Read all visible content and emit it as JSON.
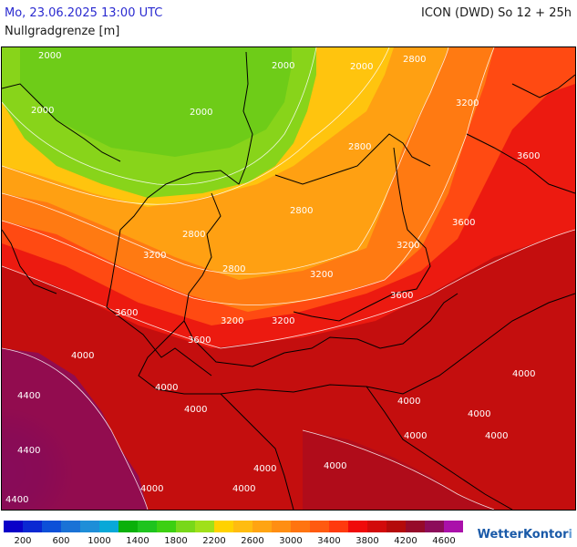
{
  "header": {
    "date": "Mo, 23.06.2025 13:00 UTC",
    "model": "ICON (DWD) So 12 + 25h",
    "parameter": "Nullgradgrenze [m]"
  },
  "legend": {
    "colors": [
      "#0a00c8",
      "#0a28d2",
      "#0d50d8",
      "#1a72d6",
      "#1e8ed8",
      "#08a8d8",
      "#0ab00a",
      "#1ec41e",
      "#3cd012",
      "#78d81a",
      "#a0e01a",
      "#ffd200",
      "#ffbc10",
      "#ffa412",
      "#ff8e12",
      "#ff7410",
      "#ff5a10",
      "#ff3a0e",
      "#f00a0a",
      "#d20a0a",
      "#b40a0a",
      "#960a2a",
      "#8c0c5a",
      "#aa10aa"
    ],
    "ticks": [
      "200",
      "600",
      "1000",
      "1400",
      "1800",
      "2200",
      "2600",
      "3000",
      "3400",
      "3800",
      "4200",
      "4600"
    ]
  },
  "contour_labels": [
    "2000",
    "2000",
    "2000",
    "2000",
    "2000",
    "2800",
    "3200",
    "2800",
    "2800",
    "2800",
    "3200",
    "3600",
    "3600",
    "3200",
    "2800",
    "3200",
    "3600",
    "3200",
    "3200",
    "3600",
    "3600",
    "4000",
    "4000",
    "4000",
    "4000",
    "4000",
    "4400",
    "4400",
    "4000",
    "4000",
    "4000",
    "4000",
    "4000",
    "4000",
    "4000",
    "4400"
  ],
  "logo": {
    "text": "WetterKontor",
    "mark": "i"
  }
}
